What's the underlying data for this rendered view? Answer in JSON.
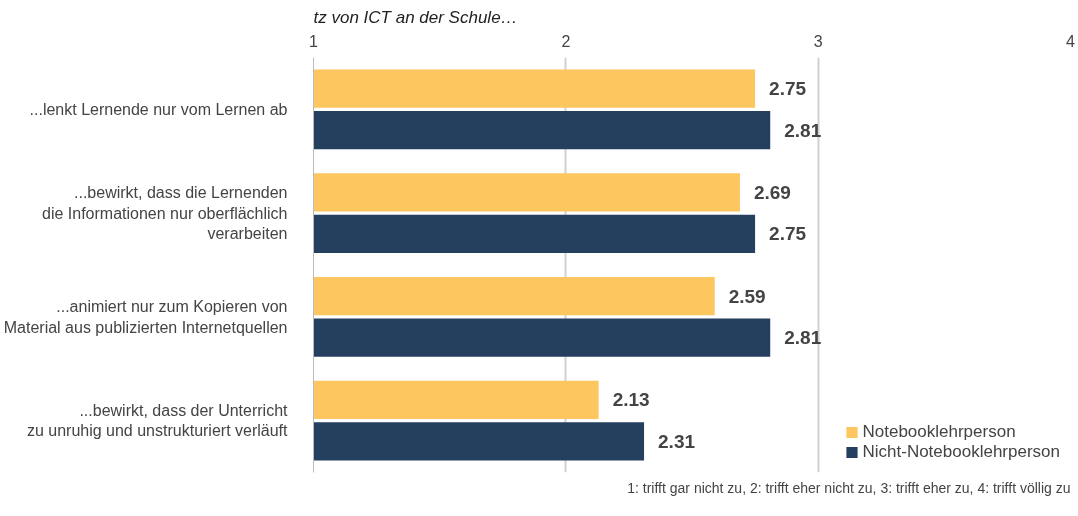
{
  "chart_data": {
    "type": "bar",
    "orientation": "horizontal",
    "title": "tz von ICT an der Schule…",
    "categories": [
      "...lenkt Lernende nur vom Lernen ab",
      "...bewirkt, dass die Lernenden\ndie Informationen nur oberflächlich\nverarbeiten",
      "...animiert nur zum Kopieren von\nMaterial aus publizierten Internetquellen",
      "...bewirkt, dass der Unterricht\nzu unruhig und unstrukturiert verläuft"
    ],
    "series": [
      {
        "name": "Notebooklehrperson",
        "color": "#fdc65f",
        "values": [
          2.75,
          2.69,
          2.59,
          2.13
        ]
      },
      {
        "name": "Nicht-Notebooklehrperson",
        "color": "#253f5f",
        "values": [
          2.81,
          2.75,
          2.81,
          2.31
        ]
      }
    ],
    "xlim": [
      1,
      4
    ],
    "xticks": [
      1,
      2,
      3,
      4
    ],
    "grid": "x",
    "legend": "bottom right",
    "data_labels": true,
    "annotations": [
      "1: trifft gar nicht zu, 2: trifft eher nicht zu, 3: trifft eher zu, 4: trifft völlig zu"
    ]
  }
}
